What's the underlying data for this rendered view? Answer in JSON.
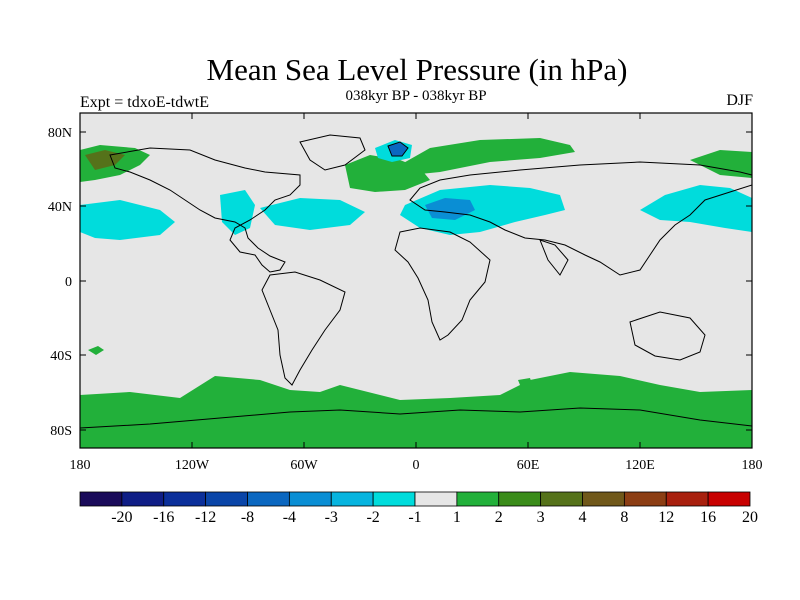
{
  "header": {
    "title": "Mean Sea Level Pressure (in hPa)",
    "subtitle": "038kyr BP - 038kyr BP",
    "left_label": "Expt = tdxoE-tdwtE",
    "right_label": "DJF"
  },
  "axes": {
    "lat_ticks": [
      "80N",
      "40N",
      "0",
      "40S",
      "80S"
    ],
    "lon_ticks": [
      "180",
      "120W",
      "60W",
      "0",
      "60E",
      "120E",
      "180"
    ]
  },
  "legend": {
    "labels": [
      "-20",
      "-16",
      "-12",
      "-8",
      "-4",
      "-3",
      "-2",
      "-1",
      "1",
      "2",
      "3",
      "4",
      "8",
      "12",
      "16",
      "20"
    ],
    "colors": [
      "#1a0b5a",
      "#0f1e86",
      "#0b2f9a",
      "#0a45a8",
      "#0b67c0",
      "#0a8ed4",
      "#07b4df",
      "#00dcdc",
      "#e6e6e6",
      "#22b03a",
      "#3a8c1a",
      "#55721a",
      "#70581a",
      "#8c3e14",
      "#a8200e",
      "#c80000"
    ]
  },
  "map_colors": {
    "background": "#e6e6e6",
    "cyan": "#00dcdc",
    "green": "#22b03a",
    "blue_light": "#0a8ed4",
    "blue_dark": "#0b67c0",
    "olive": "#55721a"
  }
}
